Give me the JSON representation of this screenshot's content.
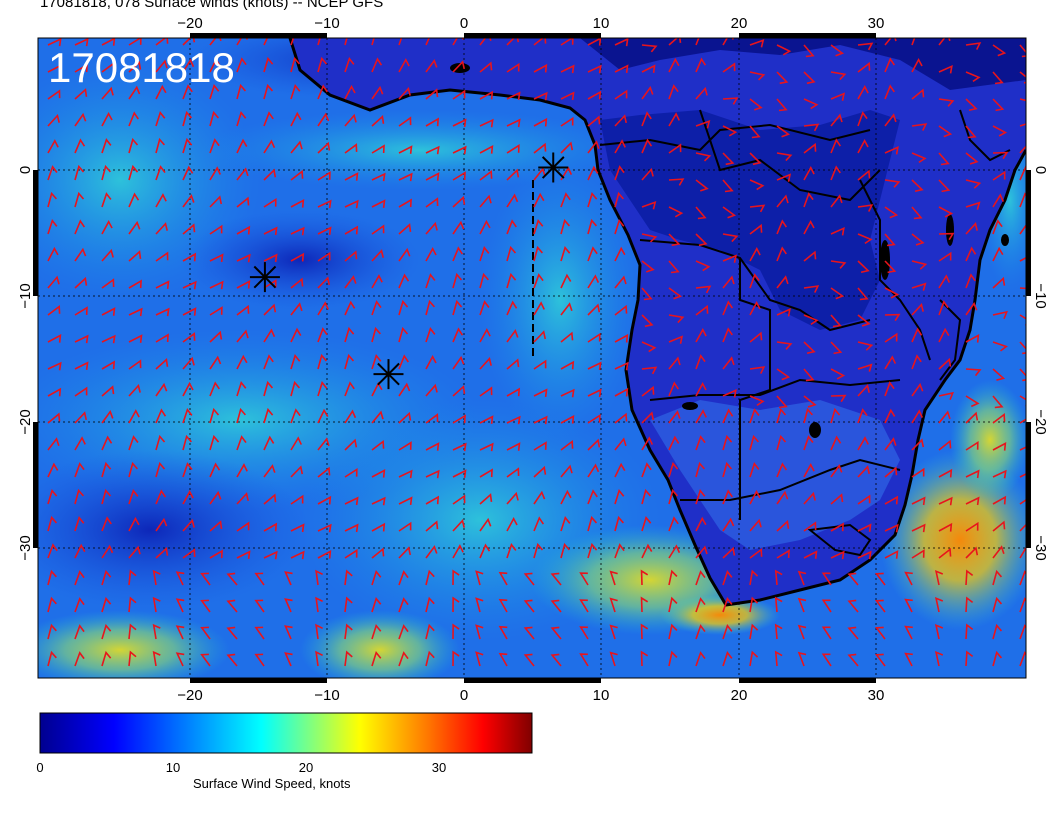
{
  "header": {
    "title": "17081818, 078 Surface winds (knots) -- NCEP GFS"
  },
  "map": {
    "stamp": "17081818",
    "lon_ticks": [
      "−20",
      "−10",
      "0",
      "10",
      "20",
      "30"
    ],
    "lat_ticks": [
      "0",
      "−10",
      "−20",
      "−30"
    ],
    "wind_barb_color": "#e8141c",
    "coast_color": "#000000",
    "storm_markers": [
      {
        "name": "marker-1",
        "lon": 6.5,
        "lat": 0.2
      },
      {
        "name": "marker-2",
        "lon": -14.5,
        "lat": -8.5
      },
      {
        "name": "marker-3",
        "lon": -5.5,
        "lat": -16.2
      }
    ]
  },
  "colorbar": {
    "label": "Surface Wind Speed, knots",
    "ticks": [
      "0",
      "10",
      "20",
      "30"
    ],
    "range": [
      0,
      37
    ],
    "colormap": [
      "#00008f",
      "#0000ff",
      "#0080ff",
      "#00ffff",
      "#80ff80",
      "#ffff00",
      "#ff8000",
      "#ff0000",
      "#800000"
    ]
  }
}
